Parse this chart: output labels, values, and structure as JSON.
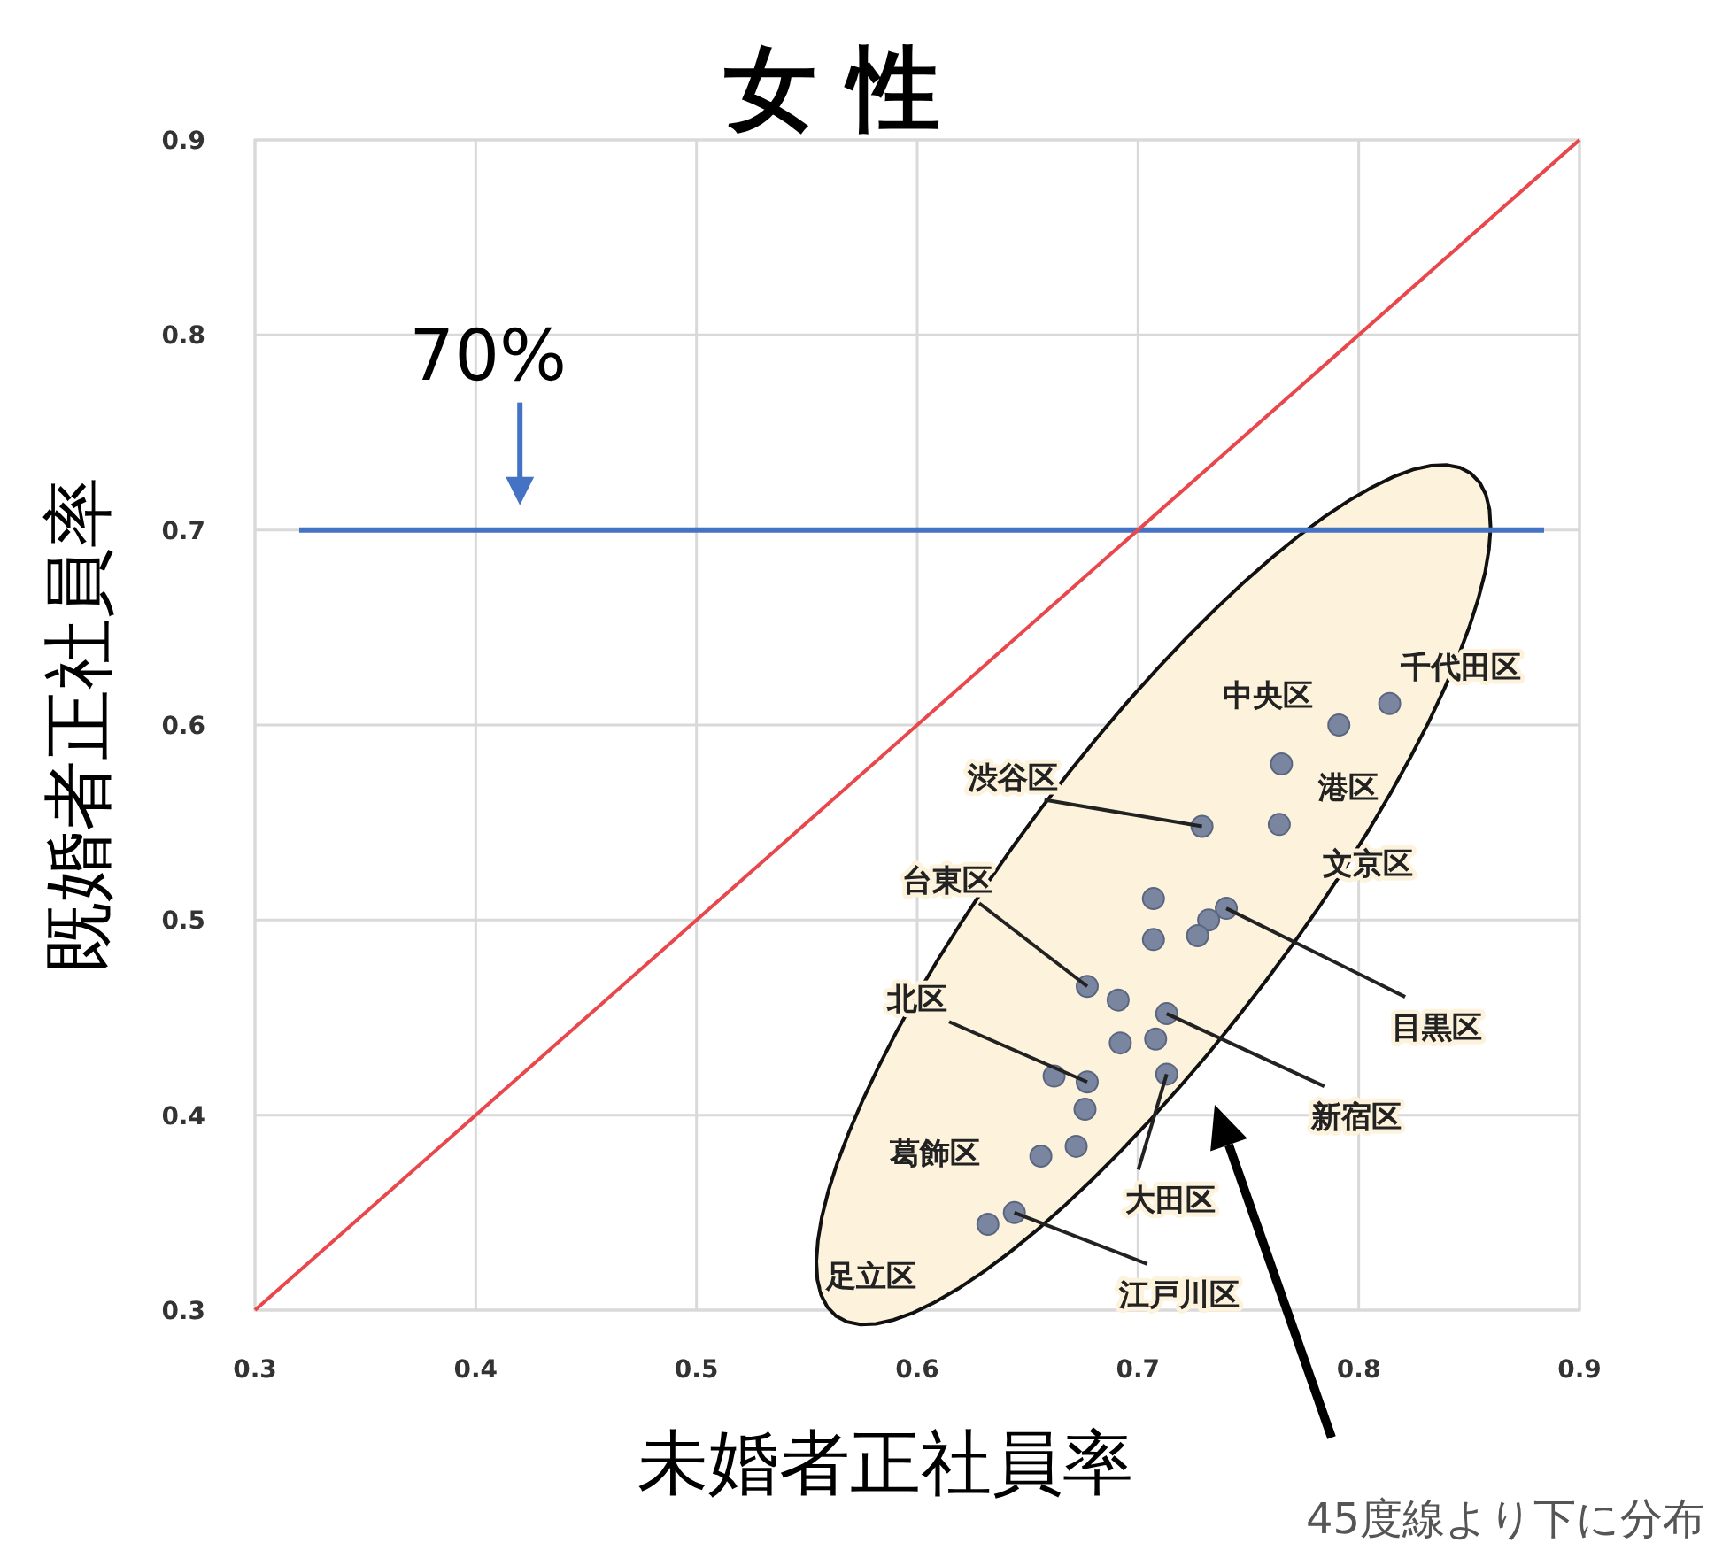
{
  "chart_data": {
    "type": "scatter",
    "title": "女 性",
    "xlabel": "未婚者正社員率",
    "ylabel": "既婚者正社員率",
    "xlim": [
      0.3,
      0.9
    ],
    "ylim": [
      0.3,
      0.9
    ],
    "xticks": [
      0.3,
      0.4,
      0.5,
      0.6,
      0.7,
      0.8,
      0.9
    ],
    "yticks": [
      0.3,
      0.4,
      0.5,
      0.6,
      0.7,
      0.8,
      0.9
    ],
    "grid": true,
    "marker": "circle",
    "series": [
      {
        "type": "line",
        "x": [
          0.3,
          0.9
        ],
        "values": [
          0.3,
          0.9
        ],
        "color": "#e8474c",
        "marker": "none"
      },
      {
        "x": [
          0.814,
          0.791,
          0.765,
          0.729,
          0.764,
          0.707,
          0.74,
          0.732,
          0.727,
          0.707,
          0.677,
          0.691,
          0.713,
          0.692,
          0.708,
          0.713,
          0.662,
          0.677,
          0.676,
          0.672,
          0.656,
          0.644,
          0.632
        ],
        "values": [
          0.611,
          0.6,
          0.58,
          0.548,
          0.549,
          0.511,
          0.506,
          0.5,
          0.492,
          0.49,
          0.466,
          0.459,
          0.452,
          0.437,
          0.439,
          0.421,
          0.42,
          0.417,
          0.403,
          0.384,
          0.379,
          0.35,
          0.344
        ],
        "color": "#7a86a0"
      }
    ],
    "ref_lines": [
      {
        "axis": "y",
        "value": 0.7,
        "label": "70%",
        "color": "#4472c4"
      }
    ],
    "annotations": [
      {
        "text": "千代田区",
        "x": 0.814,
        "y": 0.611
      },
      {
        "text": "中央区",
        "x": 0.791,
        "y": 0.6
      },
      {
        "text": "港区",
        "x": 0.765,
        "y": 0.58
      },
      {
        "text": "渋谷区",
        "x": 0.729,
        "y": 0.548
      },
      {
        "text": "文京区",
        "x": 0.764,
        "y": 0.549
      },
      {
        "text": "台東区",
        "x": 0.677,
        "y": 0.466
      },
      {
        "text": "目黒区",
        "x": 0.74,
        "y": 0.506
      },
      {
        "text": "北区",
        "x": 0.677,
        "y": 0.417
      },
      {
        "text": "新宿区",
        "x": 0.713,
        "y": 0.452
      },
      {
        "text": "葛飾区",
        "x": 0.656,
        "y": 0.379
      },
      {
        "text": "大田区",
        "x": 0.713,
        "y": 0.421
      },
      {
        "text": "足立区",
        "x": 0.632,
        "y": 0.344
      },
      {
        "text": "江戸川区",
        "x": 0.644,
        "y": 0.35
      },
      "45度線より下に分布"
    ]
  }
}
